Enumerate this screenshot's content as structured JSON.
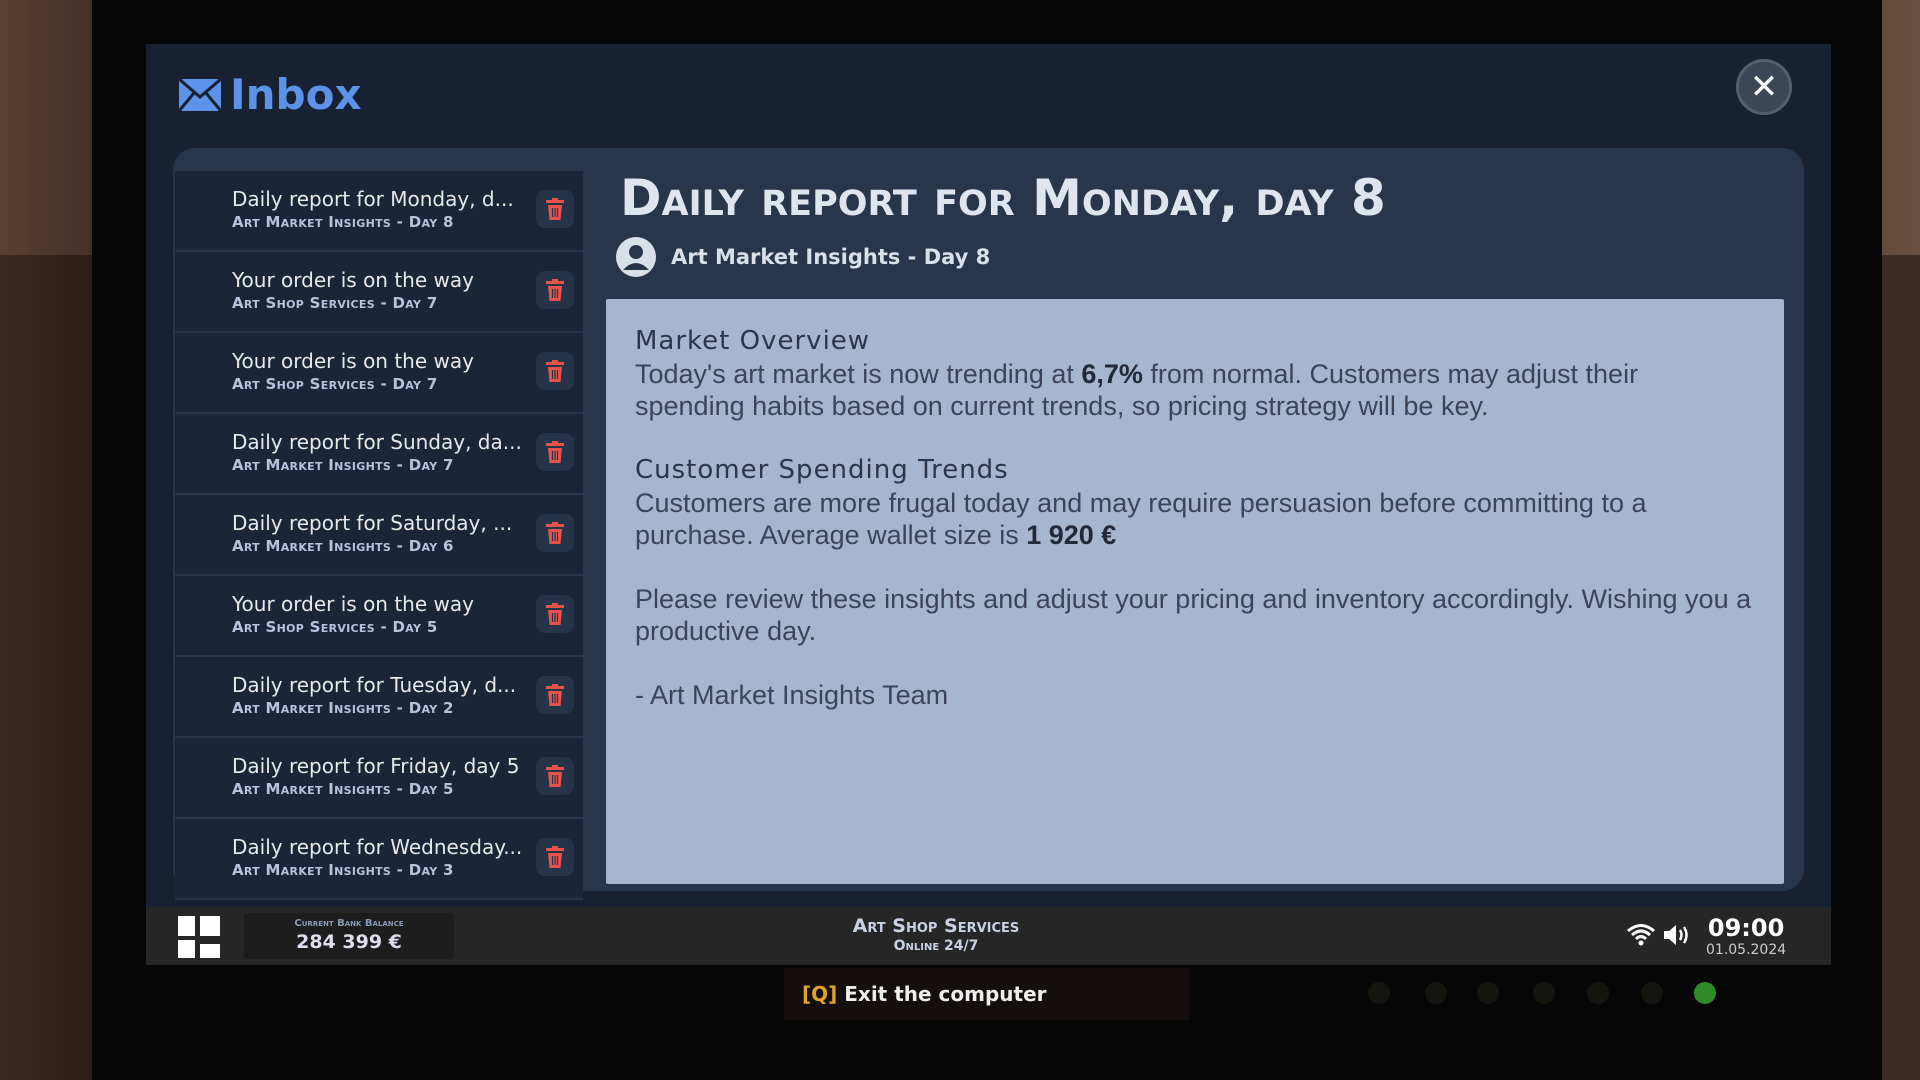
{
  "window": {
    "title": "Inbox",
    "close_label": "✕"
  },
  "inbox": [
    {
      "subject": "Daily report for Monday, d...",
      "from": "Art Market Insights - Day 8"
    },
    {
      "subject": "Your order is on the way",
      "from": "Art Shop Services - Day 7"
    },
    {
      "subject": "Your order is on the way",
      "from": "Art Shop Services - Day 7"
    },
    {
      "subject": "Daily report for Sunday, da...",
      "from": "Art Market Insights - Day 7"
    },
    {
      "subject": "Daily report for Saturday, ...",
      "from": "Art Market Insights - Day 6"
    },
    {
      "subject": "Your order is on the way",
      "from": "Art Shop Services - Day 5"
    },
    {
      "subject": "Daily report for Tuesday, d...",
      "from": "Art Market Insights - Day 2"
    },
    {
      "subject": "Daily report for Friday, day 5",
      "from": "Art Market Insights - Day 5"
    },
    {
      "subject": "Daily report for Wednesday...",
      "from": "Art Market Insights - Day 3"
    }
  ],
  "message": {
    "title": "Daily report for Monday, day 8",
    "sender": "Art Market Insights - Day 8",
    "h1": "Market Overview",
    "p1a": "Today's art market is now trending at ",
    "p1b": "6,7%",
    "p1c": " from normal. Customers may adjust their spending habits based on current trends, so pricing strategy will be key.",
    "h2": "Customer Spending Trends",
    "p2a": "Customers are more frugal today and may require persuasion before committing to a purchase. Average wallet size is ",
    "p2b": "1 920 €",
    "p3": "Please review these insights and adjust your pricing and inventory accordingly. Wishing you a productive day.",
    "sign": "- Art Market Insights Team"
  },
  "taskbar": {
    "balance_label": "Current Bank Balance",
    "balance": "284 399 €",
    "service": "Art Shop Services",
    "service_status": "Online 24/7",
    "time": "09:00",
    "date": "01.05.2024"
  },
  "tooltip": {
    "key": "[Q]",
    "text": " Exit the computer"
  },
  "colors": {
    "accent": "#5c93e8",
    "trash": "#e5534b",
    "led_active": "#2f8a2a"
  }
}
